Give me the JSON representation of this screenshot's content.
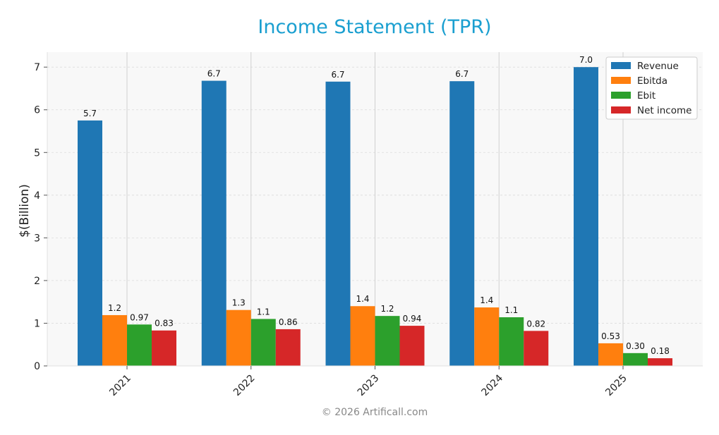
{
  "footer": "© 2026 Artificall.com",
  "chart_data": {
    "type": "bar",
    "title": "Income Statement (TPR)",
    "xlabel": "",
    "ylabel": "$(Billion)",
    "categories": [
      "2021",
      "2022",
      "2023",
      "2024",
      "2025"
    ],
    "ylim": [
      0,
      7.35
    ],
    "yticks": [
      0,
      1,
      2,
      3,
      4,
      5,
      6,
      7
    ],
    "grid": true,
    "legend_position": "top-right",
    "series": [
      {
        "name": "Revenue",
        "color": "#1f77b4",
        "values": [
          5.75,
          6.68,
          6.66,
          6.67,
          7.0
        ],
        "labels": [
          "5.7",
          "6.7",
          "6.7",
          "6.7",
          "7.0"
        ]
      },
      {
        "name": "Ebitda",
        "color": "#ff7f0e",
        "values": [
          1.19,
          1.31,
          1.4,
          1.37,
          0.53
        ],
        "labels": [
          "1.2",
          "1.3",
          "1.4",
          "1.4",
          "0.53"
        ]
      },
      {
        "name": "Ebit",
        "color": "#2ca02c",
        "values": [
          0.97,
          1.1,
          1.17,
          1.14,
          0.3
        ],
        "labels": [
          "0.97",
          "1.1",
          "1.2",
          "1.1",
          "0.30"
        ]
      },
      {
        "name": "Net income",
        "color": "#d62728",
        "values": [
          0.83,
          0.86,
          0.94,
          0.82,
          0.18
        ],
        "labels": [
          "0.83",
          "0.86",
          "0.94",
          "0.82",
          "0.18"
        ]
      }
    ]
  }
}
